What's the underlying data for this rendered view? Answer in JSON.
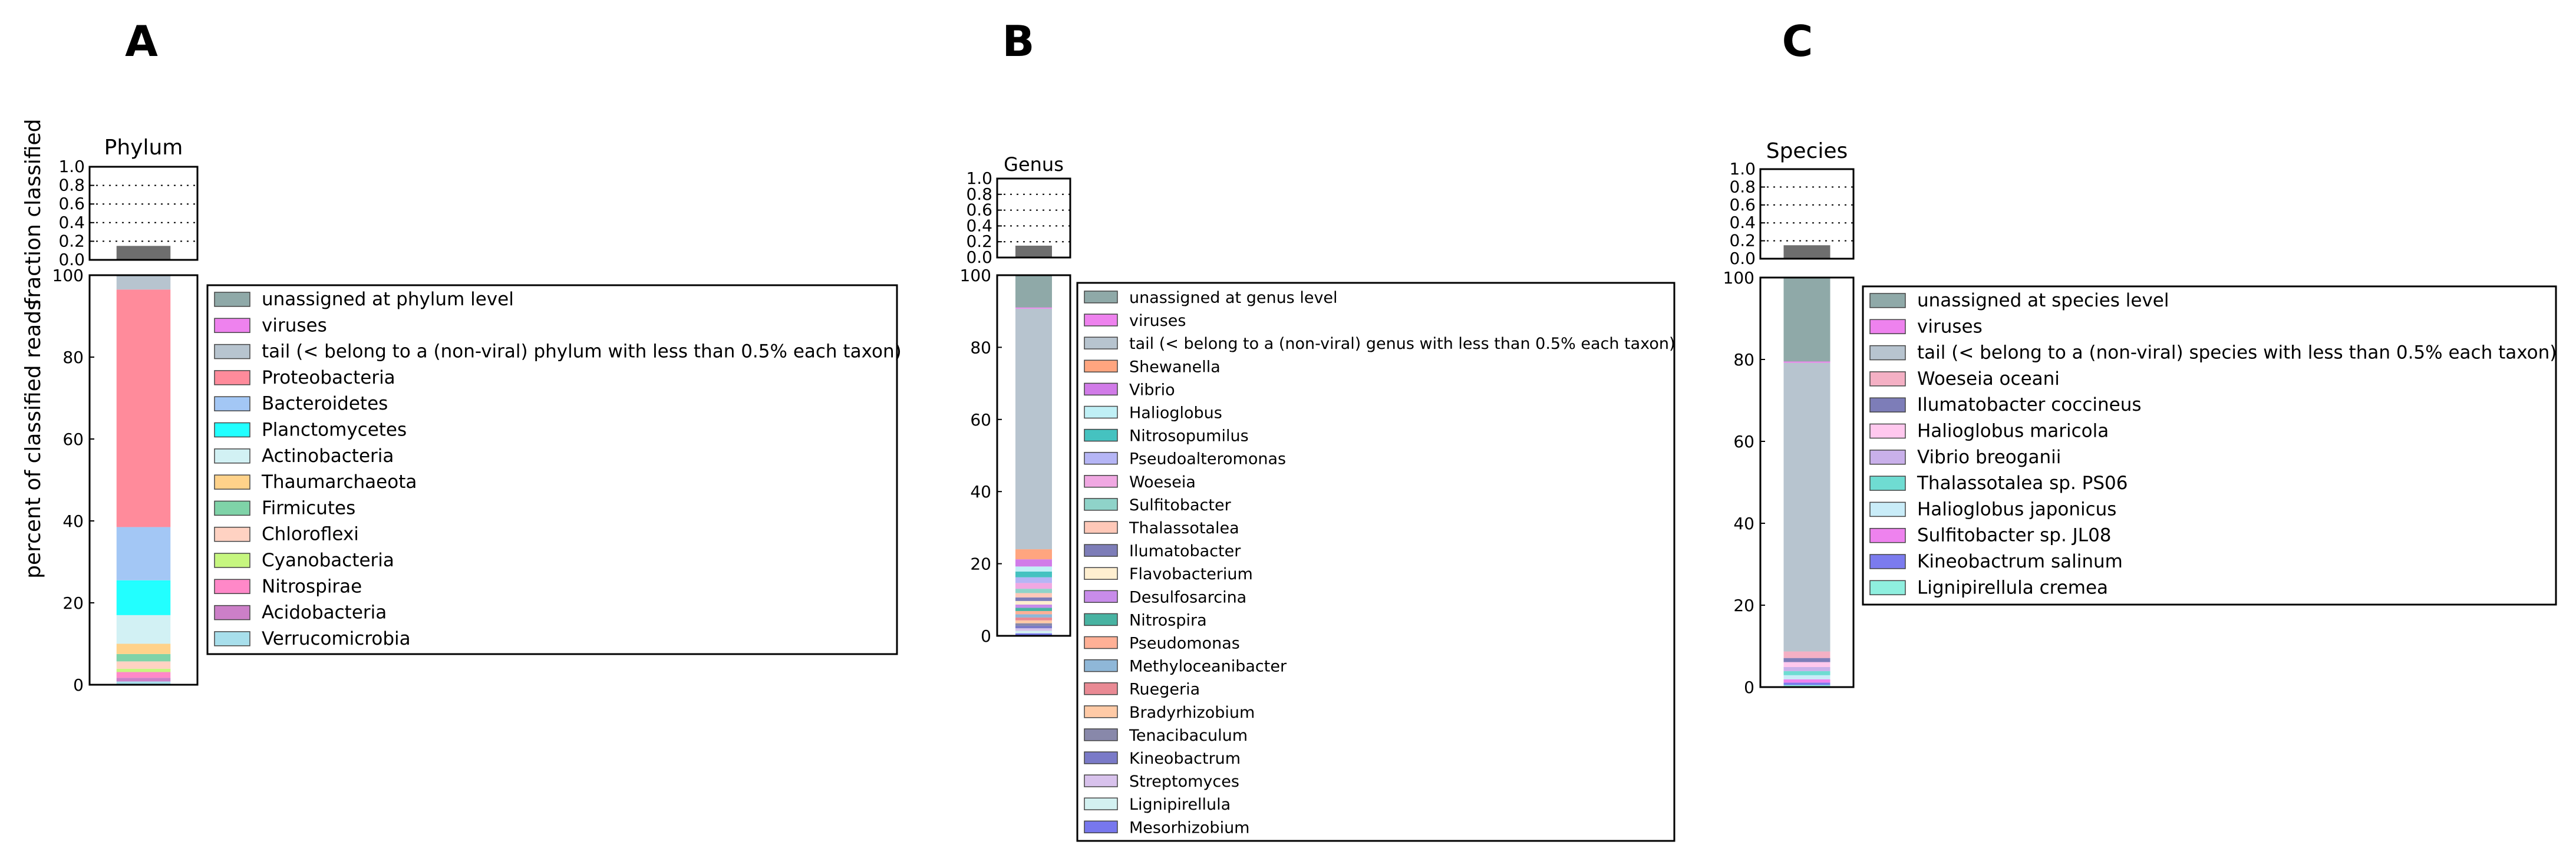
{
  "y_axis": {
    "fraction_label": "fraction classified",
    "percent_label": "percent of classified reads"
  },
  "chart_data": [
    {
      "panel": "A",
      "title": "Phylum",
      "type": "stacked-bar",
      "fraction_ticks": [
        "0.0",
        "0.2",
        "0.4",
        "0.6",
        "0.8",
        "1.0"
      ],
      "fraction_classified": 0.15,
      "percent_ticks": [
        "0",
        "20",
        "40",
        "60",
        "80",
        "100"
      ],
      "ylim": [
        0,
        100
      ],
      "legend": [
        {
          "label": "unassigned at phylum level",
          "color": "#8fa9a8",
          "value": 0
        },
        {
          "label": "viruses",
          "color": "#ee82ee",
          "value": 0
        },
        {
          "label": "tail (< belong to a (non-viral) phylum with less than 0.5% each taxon)",
          "color": "#b7c4cf",
          "value": 3.5
        },
        {
          "label": "Proteobacteria",
          "color": "#ff8b9b",
          "value": 58
        },
        {
          "label": "Bacteroidetes",
          "color": "#a3c7f5",
          "value": 13
        },
        {
          "label": "Planctomycetes",
          "color": "#22ffff",
          "value": 8.5
        },
        {
          "label": "Actinobacteria",
          "color": "#d2f1f4",
          "value": 7
        },
        {
          "label": "Thaumarchaeota",
          "color": "#ffd28a",
          "value": 2.5
        },
        {
          "label": "Firmicutes",
          "color": "#7fd3a8",
          "value": 1.8
        },
        {
          "label": "Chloroflexi",
          "color": "#ffd2c2",
          "value": 1.8
        },
        {
          "label": "Cyanobacteria",
          "color": "#c6f67f",
          "value": 0.8
        },
        {
          "label": "Nitrospirae",
          "color": "#ff88c8",
          "value": 1.4
        },
        {
          "label": "Acidobacteria",
          "color": "#cc7fc8",
          "value": 0.9
        },
        {
          "label": "Verrucomicrobia",
          "color": "#a8dfec",
          "value": 0.8
        }
      ]
    },
    {
      "panel": "B",
      "title": "Genus",
      "type": "stacked-bar",
      "fraction_ticks": [
        "0.0",
        "0.2",
        "0.4",
        "0.6",
        "0.8",
        "1.0"
      ],
      "fraction_classified": 0.15,
      "percent_ticks": [
        "0",
        "20",
        "40",
        "60",
        "80",
        "100"
      ],
      "ylim": [
        0,
        100
      ],
      "legend": [
        {
          "label": "unassigned at genus level",
          "color": "#8fa9a8",
          "value": 9
        },
        {
          "label": "viruses",
          "color": "#ee82ee",
          "value": 0.3
        },
        {
          "label": "tail (< belong to a (non-viral) genus with less than 0.5% each taxon)",
          "color": "#b7c4cf",
          "value": 67
        },
        {
          "label": "Shewanella",
          "color": "#ffa57f",
          "value": 2.8
        },
        {
          "label": "Vibrio",
          "color": "#d17be8",
          "value": 2
        },
        {
          "label": "Halioglobus",
          "color": "#c0f0f6",
          "value": 1.4
        },
        {
          "label": "Nitrosopumilus",
          "color": "#45c2c0",
          "value": 1.6
        },
        {
          "label": "Pseudoalteromonas",
          "color": "#b5b5f5",
          "value": 1.6
        },
        {
          "label": "Woeseia",
          "color": "#f0a8e2",
          "value": 1.6
        },
        {
          "label": "Sulfitobacter",
          "color": "#8fd3c9",
          "value": 1.2
        },
        {
          "label": "Thalassotalea",
          "color": "#ffc8b8",
          "value": 1.2
        },
        {
          "label": "Ilumatobacter",
          "color": "#7d7db8",
          "value": 1
        },
        {
          "label": "Flavobacterium",
          "color": "#ffefd0",
          "value": 1
        },
        {
          "label": "Desulfosarcina",
          "color": "#c88cea",
          "value": 0.9
        },
        {
          "label": "Nitrospira",
          "color": "#48b3a2",
          "value": 0.9
        },
        {
          "label": "Pseudomonas",
          "color": "#ffb096",
          "value": 0.9
        },
        {
          "label": "Methyloceanibacter",
          "color": "#8fb7d8",
          "value": 0.9
        },
        {
          "label": "Ruegeria",
          "color": "#e98a94",
          "value": 0.8
        },
        {
          "label": "Bradyrhizobium",
          "color": "#ffcaa6",
          "value": 0.8
        },
        {
          "label": "Tenacibaculum",
          "color": "#8888aa",
          "value": 0.7
        },
        {
          "label": "Kineobactrum",
          "color": "#7a7ac8",
          "value": 0.7
        },
        {
          "label": "Streptomyces",
          "color": "#d8c2ec",
          "value": 0.7
        },
        {
          "label": "Lignipirellula",
          "color": "#d3f1f1",
          "value": 0.7
        },
        {
          "label": "Mesorhizobium",
          "color": "#7777ee",
          "value": 0.7
        }
      ]
    },
    {
      "panel": "C",
      "title": "Species",
      "type": "stacked-bar",
      "fraction_ticks": [
        "0.0",
        "0.2",
        "0.4",
        "0.6",
        "0.8",
        "1.0"
      ],
      "fraction_classified": 0.15,
      "percent_ticks": [
        "0",
        "20",
        "40",
        "60",
        "80",
        "100"
      ],
      "ylim": [
        0,
        100
      ],
      "legend": [
        {
          "label": "unassigned at species level",
          "color": "#8fa9a8",
          "value": 20.5
        },
        {
          "label": "viruses",
          "color": "#ee82ee",
          "value": 0.3
        },
        {
          "label": "tail (< belong to a (non-viral) species with less than 0.5% each taxon)",
          "color": "#b7c4cf",
          "value": 70.5
        },
        {
          "label": "Woeseia oceani",
          "color": "#f4b0c4",
          "value": 1.6
        },
        {
          "label": "Ilumatobacter coccineus",
          "color": "#7d7db8",
          "value": 1
        },
        {
          "label": "Halioglobus maricola",
          "color": "#ffc8ee",
          "value": 1.2
        },
        {
          "label": "Vibrio breoganii",
          "color": "#c9b0ea",
          "value": 1
        },
        {
          "label": "Thalassotalea sp. PS06",
          "color": "#6fdcd2",
          "value": 1
        },
        {
          "label": "Halioglobus japonicus",
          "color": "#c9ecf8",
          "value": 1
        },
        {
          "label": "Sulfitobacter sp. JL08",
          "color": "#ee82ee",
          "value": 0.8
        },
        {
          "label": "Kineobactrum salinum",
          "color": "#7b7bee",
          "value": 0.6
        },
        {
          "label": "Lignipirellula cremea",
          "color": "#8fefdf",
          "value": 0.5
        }
      ]
    }
  ]
}
